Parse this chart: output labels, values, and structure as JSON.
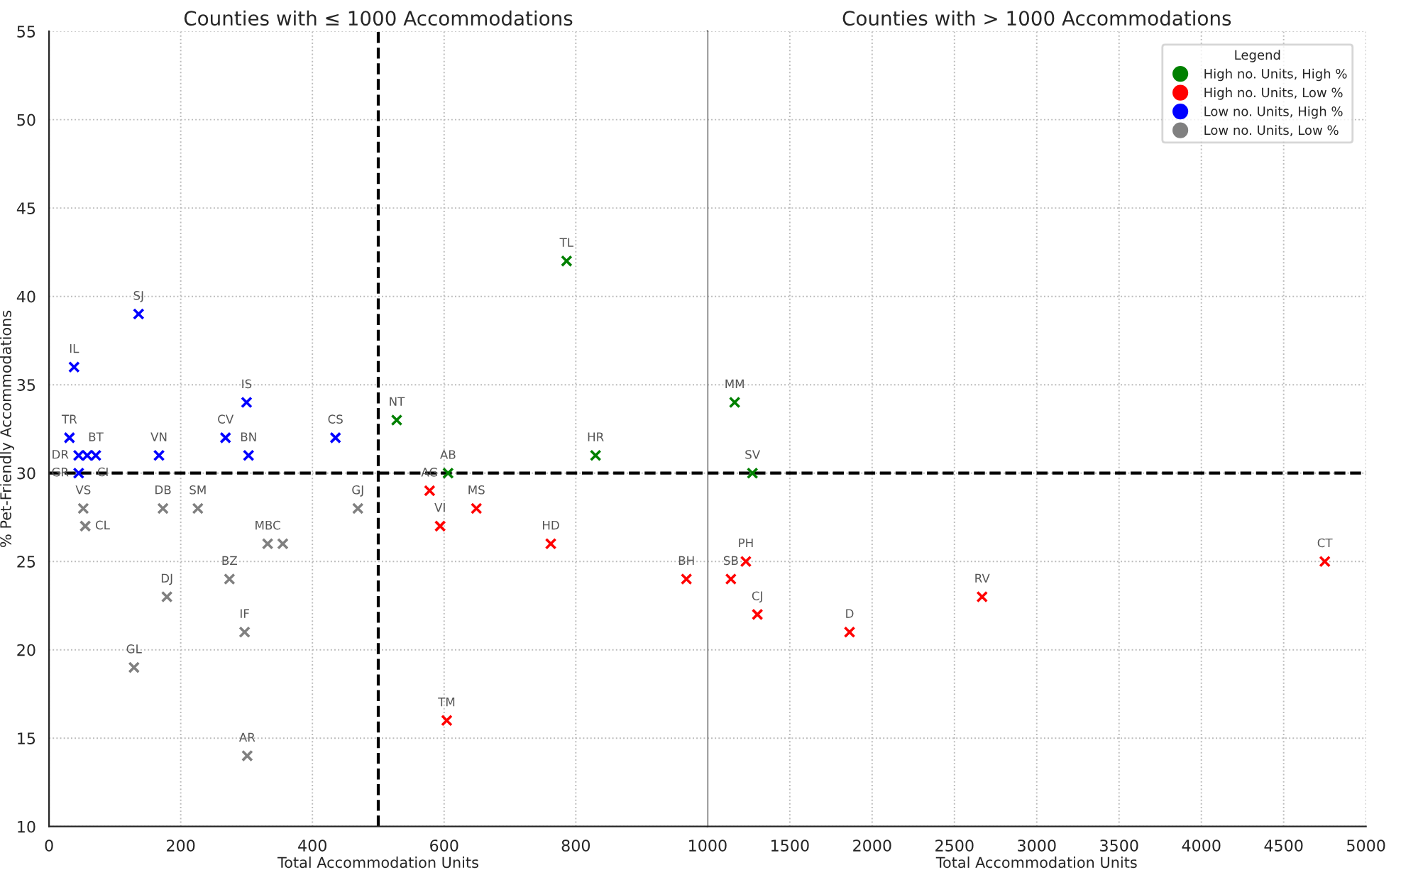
{
  "chart_data": [
    {
      "type": "scatter",
      "title": "Counties with ≤ 1000 Accommodations",
      "xlabel": "Total Accommodation Units",
      "ylabel": "% Pet-Friendly Accommodations",
      "xlim": [
        0,
        1000
      ],
      "xticks": [
        0,
        200,
        400,
        600,
        800
      ],
      "ylim": [
        10,
        55
      ],
      "yticks": [
        10,
        15,
        20,
        25,
        30,
        35,
        40,
        45,
        50,
        55
      ],
      "grid": true,
      "marker": "cross",
      "legend": "top right",
      "legend_title": "Legend",
      "series": [
        {
          "name": "High no. Units, High %",
          "color": "#008000",
          "x": [
            786,
            528,
            606,
            830
          ],
          "values": [
            42,
            33,
            30,
            31
          ]
        },
        {
          "name": "High no. Units, Low %",
          "color": "#ff0000",
          "x": [
            578,
            594,
            649,
            762,
            968,
            604
          ],
          "values": [
            29,
            27,
            28,
            26,
            24,
            16
          ]
        },
        {
          "name": "Low no. Units, High %",
          "color": "#0000ff",
          "x": [
            136,
            38,
            300,
            268,
            31,
            435,
            167,
            303,
            45,
            58,
            71,
            45
          ],
          "values": [
            39,
            36,
            34,
            32,
            32,
            32,
            31,
            31,
            31,
            31,
            31,
            30
          ]
        },
        {
          "name": "Low no. Units, Low %",
          "color": "#808080",
          "x": [
            52,
            55,
            173,
            226,
            332,
            355,
            469,
            274,
            179,
            297,
            129,
            301
          ],
          "values": [
            28,
            27,
            28,
            28,
            26,
            26,
            28,
            24,
            23,
            21,
            19,
            14
          ]
        }
      ],
      "ref_lines": [
        {
          "axis": "x",
          "value": 500,
          "color": "#000000",
          "line_style": "dashed"
        },
        {
          "axis": "y",
          "value": 30,
          "color": "#000000",
          "line_style": "dashed"
        }
      ],
      "annotations": [
        {
          "text": "TL",
          "x": 786,
          "y": 42
        },
        {
          "text": "NT",
          "x": 528,
          "y": 33
        },
        {
          "text": "AB",
          "x": 606,
          "y": 30
        },
        {
          "text": "HR",
          "x": 830,
          "y": 31
        },
        {
          "text": "AG",
          "x": 578,
          "y": 29
        },
        {
          "text": "VI",
          "x": 594,
          "y": 27
        },
        {
          "text": "MS",
          "x": 649,
          "y": 28
        },
        {
          "text": "HD",
          "x": 762,
          "y": 26
        },
        {
          "text": "BH",
          "x": 968,
          "y": 24
        },
        {
          "text": "TM",
          "x": 604,
          "y": 16
        },
        {
          "text": "SJ",
          "x": 136,
          "y": 39
        },
        {
          "text": "IL",
          "x": 38,
          "y": 36
        },
        {
          "text": "IS",
          "x": 300,
          "y": 34
        },
        {
          "text": "CV",
          "x": 268,
          "y": 32
        },
        {
          "text": "TR",
          "x": 31,
          "y": 32
        },
        {
          "text": "CS",
          "x": 435,
          "y": 32
        },
        {
          "text": "VN",
          "x": 167,
          "y": 31
        },
        {
          "text": "BN",
          "x": 303,
          "y": 31
        },
        {
          "text": "DR",
          "x": 45,
          "y": 31
        },
        {
          "text": "BT",
          "x": 71,
          "y": 31
        },
        {
          "text": "CI",
          "x": 58,
          "y": 31
        },
        {
          "text": "GR",
          "x": 45,
          "y": 30
        },
        {
          "text": "VS",
          "x": 52,
          "y": 28
        },
        {
          "text": "CL",
          "x": 55,
          "y": 27
        },
        {
          "text": "DB",
          "x": 173,
          "y": 28
        },
        {
          "text": "SM",
          "x": 226,
          "y": 28
        },
        {
          "text": "MBC",
          "x": 332,
          "y": 26
        },
        {
          "text": "GJ",
          "x": 469,
          "y": 28
        },
        {
          "text": "BZ",
          "x": 274,
          "y": 24
        },
        {
          "text": "DJ",
          "x": 179,
          "y": 23
        },
        {
          "text": "IF",
          "x": 297,
          "y": 21
        },
        {
          "text": "GL",
          "x": 129,
          "y": 19
        },
        {
          "text": "AR",
          "x": 301,
          "y": 14
        }
      ]
    },
    {
      "type": "scatter",
      "title": "Counties with > 1000 Accommodations",
      "xlabel": "Total Accommodation Units",
      "xlim": [
        1000,
        5000
      ],
      "xticks": [
        1000,
        1500,
        2000,
        2500,
        3000,
        3500,
        4000,
        4500,
        5000
      ],
      "ylim": [
        10,
        55
      ],
      "yticks": [
        10,
        15,
        20,
        25,
        30,
        35,
        40,
        45,
        50,
        55
      ],
      "tick_labels": "x",
      "grid": true,
      "marker": "cross",
      "series": [
        {
          "color": "#008000",
          "x": [
            1165,
            1273
          ],
          "values": [
            34,
            30
          ]
        },
        {
          "color": "#ff0000",
          "x": [
            1233,
            1142,
            1303,
            1863,
            2668,
            4750
          ],
          "values": [
            25,
            24,
            22,
            21,
            23,
            25
          ]
        }
      ],
      "ref_lines": [
        {
          "axis": "y",
          "value": 30,
          "color": "#000000",
          "line_style": "dashed"
        }
      ],
      "annotations": [
        {
          "text": "MM",
          "x": 1165,
          "y": 34
        },
        {
          "text": "SV",
          "x": 1273,
          "y": 30
        },
        {
          "text": "PH",
          "x": 1233,
          "y": 25
        },
        {
          "text": "SB",
          "x": 1142,
          "y": 24
        },
        {
          "text": "CJ",
          "x": 1303,
          "y": 22
        },
        {
          "text": "D",
          "x": 1863,
          "y": 21
        },
        {
          "text": "RV",
          "x": 2668,
          "y": 23
        },
        {
          "text": "CT",
          "x": 4750,
          "y": 25
        }
      ]
    }
  ]
}
